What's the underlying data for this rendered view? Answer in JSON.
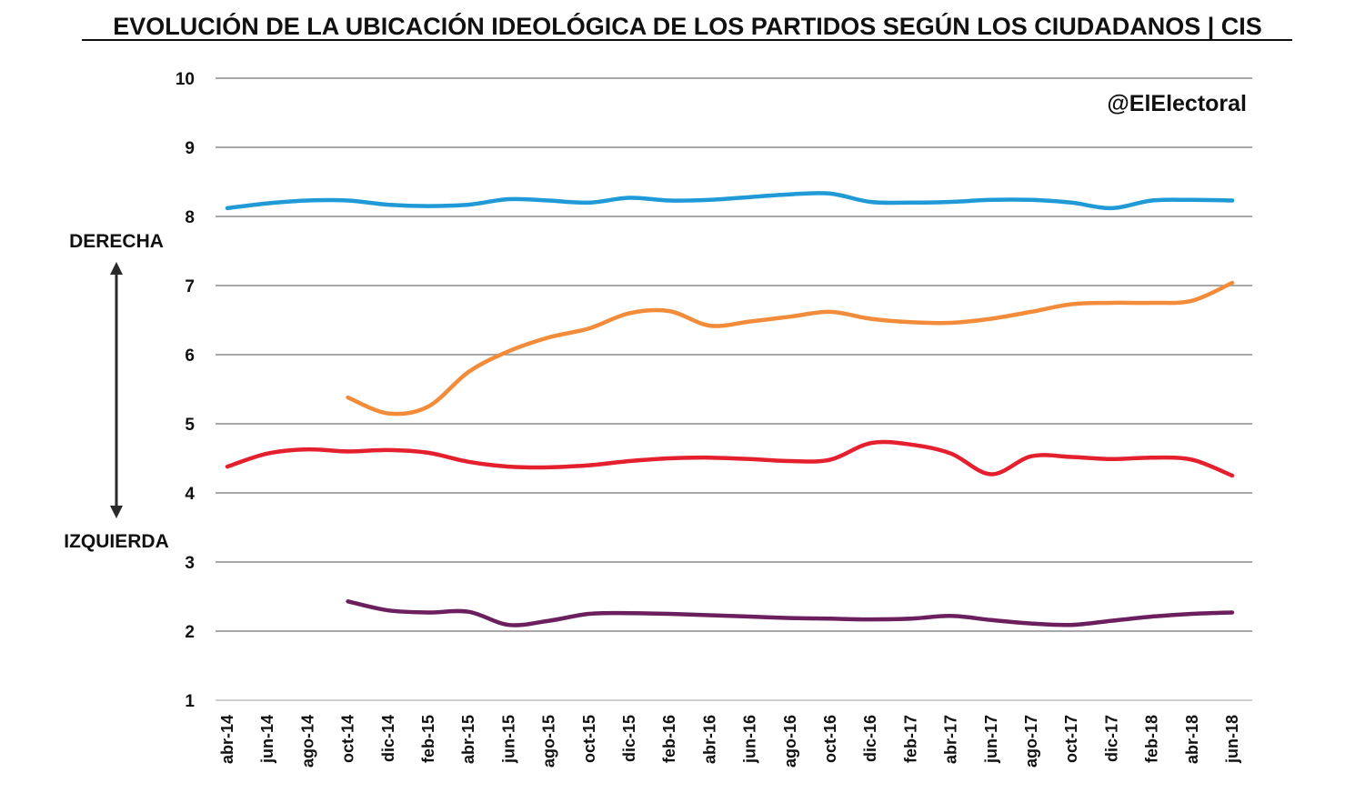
{
  "chart_data": {
    "type": "line",
    "title": "EVOLUCIÓN DE LA UBICACIÓN IDEOLÓGICA DE LOS PARTIDOS SEGÚN LOS CIUDADANOS | CIS",
    "watermark": "@ElElectoral",
    "side_labels": {
      "top": "DERECHA",
      "bottom": "IZQUIERDA"
    },
    "xlabel": "",
    "ylabel": "",
    "ylim": [
      1,
      10
    ],
    "yticks": [
      "1",
      "2",
      "3",
      "4",
      "5",
      "6",
      "7",
      "8",
      "9",
      "10"
    ],
    "grid": true,
    "legend": "none",
    "categories": [
      "abr-14",
      "jun-14",
      "ago-14",
      "oct-14",
      "dic-14",
      "feb-15",
      "abr-15",
      "jun-15",
      "ago-15",
      "oct-15",
      "dic-15",
      "feb-16",
      "abr-16",
      "jun-16",
      "ago-16",
      "oct-16",
      "dic-16",
      "feb-17",
      "abr-17",
      "jun-17",
      "ago-17",
      "oct-17",
      "dic-17",
      "feb-18",
      "abr-18",
      "jun-18"
    ],
    "series": [
      {
        "color": "#1f9ad6",
        "values": [
          8.12,
          8.19,
          8.23,
          8.23,
          8.17,
          8.15,
          8.17,
          8.25,
          8.23,
          8.2,
          8.27,
          8.23,
          8.24,
          8.28,
          8.32,
          8.33,
          8.21,
          8.2,
          8.21,
          8.24,
          8.24,
          8.2,
          8.12,
          8.23,
          8.24,
          8.23
        ]
      },
      {
        "color": "#f28c3a",
        "values": [
          null,
          null,
          null,
          5.38,
          5.15,
          5.25,
          5.75,
          6.05,
          6.25,
          6.38,
          6.6,
          6.63,
          6.42,
          6.48,
          6.55,
          6.62,
          6.52,
          6.47,
          6.46,
          6.52,
          6.62,
          6.73,
          6.75,
          6.75,
          6.78,
          7.04
        ]
      },
      {
        "color": "#e5202e",
        "values": [
          4.38,
          4.57,
          4.63,
          4.6,
          4.62,
          4.58,
          4.45,
          4.38,
          4.37,
          4.4,
          4.46,
          4.5,
          4.51,
          4.49,
          4.46,
          4.48,
          4.72,
          4.7,
          4.57,
          4.27,
          4.53,
          4.52,
          4.49,
          4.51,
          4.48,
          4.25
        ]
      },
      {
        "color": "#6b1f5e",
        "values": [
          null,
          null,
          null,
          2.43,
          2.3,
          2.27,
          2.28,
          2.09,
          2.15,
          2.25,
          2.26,
          2.25,
          2.23,
          2.21,
          2.19,
          2.18,
          2.17,
          2.18,
          2.22,
          2.16,
          2.11,
          2.09,
          2.15,
          2.21,
          2.25,
          2.27
        ]
      }
    ]
  }
}
